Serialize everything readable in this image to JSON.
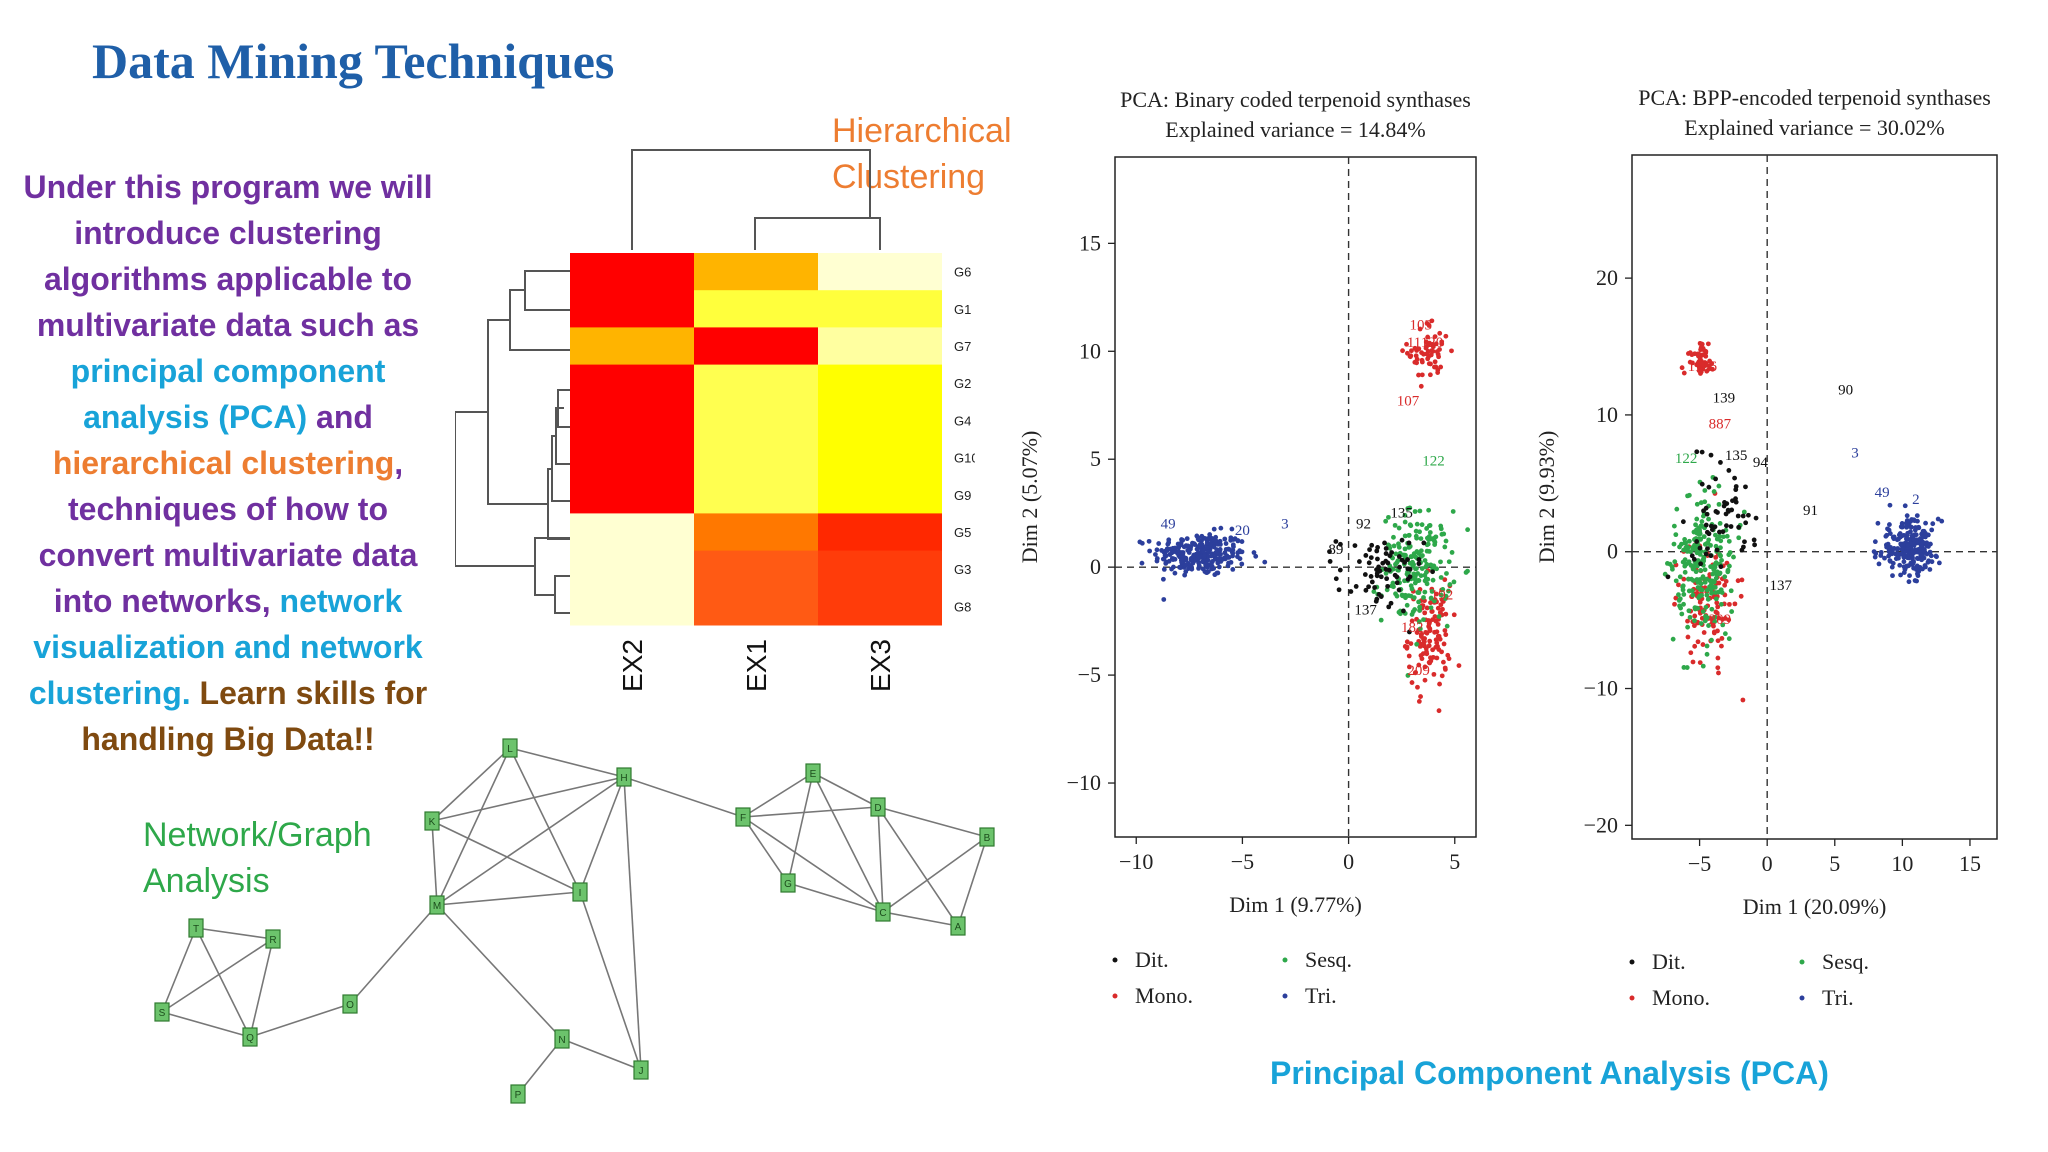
{
  "page": {
    "title": "Data Mining Techniques",
    "intro": {
      "p1": "Under this program we will introduce clustering algorithms applicable to multivariate data such as",
      "p2": "principal component analysis (PCA)",
      "p3": "and",
      "p4": "hierarchical clustering",
      "p5": ", techniques of how to convert multivariate data into networks,",
      "p6": "network visualization and network clustering.",
      "p7": "Learn skills for handling Big Data!!"
    },
    "hc_label_1": "Hierarchical",
    "hc_label_2": "Clustering",
    "net_label_1": "Network/Graph",
    "net_label_2": "Analysis",
    "pca_caption": "Principal Component Analysis (PCA)"
  },
  "heatmap": {
    "rows": [
      "G6",
      "G1",
      "G7",
      "G2",
      "G4",
      "G10",
      "G9",
      "G5",
      "G3",
      "G8"
    ],
    "cols": [
      "EX2",
      "EX1",
      "EX3"
    ],
    "colors": [
      [
        "#ff0000",
        "#ffb400",
        "#ffffd2"
      ],
      [
        "#ff0000",
        "#ffff3c",
        "#ffff3c"
      ],
      [
        "#ffb400",
        "#ff0000",
        "#ffffa0"
      ],
      [
        "#ff0000",
        "#ffff50",
        "#ffff00"
      ],
      [
        "#ff0000",
        "#ffff50",
        "#ffff00"
      ],
      [
        "#ff0000",
        "#ffff50",
        "#ffff00"
      ],
      [
        "#ff0000",
        "#ffff50",
        "#ffff00"
      ],
      [
        "#ffffd2",
        "#ff7800",
        "#ff2800"
      ],
      [
        "#ffffd2",
        "#ff5a14",
        "#ff3c0a"
      ],
      [
        "#ffffd2",
        "#ff5a14",
        "#ff3c0a"
      ]
    ]
  },
  "network": {
    "nodes": [
      {
        "id": "L"
      },
      {
        "id": "H"
      },
      {
        "id": "K"
      },
      {
        "id": "I"
      },
      {
        "id": "M"
      },
      {
        "id": "T"
      },
      {
        "id": "R"
      },
      {
        "id": "S"
      },
      {
        "id": "Q"
      },
      {
        "id": "O"
      },
      {
        "id": "N"
      },
      {
        "id": "P"
      },
      {
        "id": "J"
      },
      {
        "id": "F"
      },
      {
        "id": "E"
      },
      {
        "id": "D"
      },
      {
        "id": "B"
      },
      {
        "id": "G"
      },
      {
        "id": "C"
      },
      {
        "id": "A"
      }
    ],
    "edges": [
      [
        "L",
        "K"
      ],
      [
        "L",
        "M"
      ],
      [
        "L",
        "H"
      ],
      [
        "L",
        "I"
      ],
      [
        "K",
        "H"
      ],
      [
        "K",
        "I"
      ],
      [
        "K",
        "M"
      ],
      [
        "M",
        "H"
      ],
      [
        "M",
        "I"
      ],
      [
        "H",
        "I"
      ],
      [
        "H",
        "J"
      ],
      [
        "H",
        "F"
      ],
      [
        "M",
        "O"
      ],
      [
        "M",
        "N"
      ],
      [
        "I",
        "J"
      ],
      [
        "T",
        "R"
      ],
      [
        "T",
        "S"
      ],
      [
        "T",
        "Q"
      ],
      [
        "R",
        "S"
      ],
      [
        "R",
        "Q"
      ],
      [
        "S",
        "Q"
      ],
      [
        "Q",
        "O"
      ],
      [
        "N",
        "P"
      ],
      [
        "N",
        "J"
      ],
      [
        "F",
        "E"
      ],
      [
        "F",
        "D"
      ],
      [
        "F",
        "G"
      ],
      [
        "F",
        "C"
      ],
      [
        "E",
        "D"
      ],
      [
        "E",
        "G"
      ],
      [
        "E",
        "C"
      ],
      [
        "D",
        "B"
      ],
      [
        "D",
        "C"
      ],
      [
        "D",
        "A"
      ],
      [
        "B",
        "C"
      ],
      [
        "B",
        "A"
      ],
      [
        "G",
        "C"
      ],
      [
        "C",
        "A"
      ]
    ]
  },
  "chart_data": [
    {
      "type": "scatter",
      "title": "PCA: Binary coded terpenoid synthases",
      "subtitle": "Explained variance = 14.84%",
      "xlabel": "Dim 1 (9.77%)",
      "ylabel": "Dim 2 (5.07%)",
      "xlim": [
        -11,
        6
      ],
      "ylim": [
        -12.5,
        19
      ],
      "xticks": [
        -10,
        -5,
        0,
        5
      ],
      "yticks": [
        -10,
        -5,
        0,
        5,
        10,
        15
      ],
      "xtick_labels": [
        "−10",
        "−5",
        "0",
        "5"
      ],
      "ytick_labels": [
        "−10",
        "−5",
        "0",
        "5",
        "10",
        "15"
      ],
      "legend": [
        "Dit.",
        "Sesq.",
        "Mono.",
        "Tri."
      ],
      "series": [
        {
          "name": "Tri.",
          "color": "#2c3f9c",
          "cx": -7,
          "cy": 0.6,
          "sx": 1.1,
          "sy": 0.5,
          "n": 260
        },
        {
          "name": "Mono.",
          "color": "#d92b2b",
          "cx": 3.8,
          "cy": 10,
          "sx": 0.5,
          "sy": 0.7,
          "n": 60
        },
        {
          "name": "Mono.",
          "color": "#d92b2b",
          "cx": 3.8,
          "cy": -3.2,
          "sx": 0.5,
          "sy": 1.2,
          "n": 120
        },
        {
          "name": "Sesq.",
          "color": "#2ea84a",
          "cx": 3.2,
          "cy": 0,
          "sx": 0.8,
          "sy": 1.3,
          "n": 200
        },
        {
          "name": "Dit.",
          "color": "#111111",
          "cx": 1.5,
          "cy": -0.3,
          "sx": 1.0,
          "sy": 0.9,
          "n": 70
        }
      ],
      "annotations": [
        {
          "x": 3.4,
          "y": 11,
          "text": "103",
          "color": "#d92b2b"
        },
        {
          "x": 3.6,
          "y": 10.2,
          "text": "11120",
          "color": "#d92b2b"
        },
        {
          "x": 2.8,
          "y": 7.5,
          "text": "107",
          "color": "#d92b2b"
        },
        {
          "x": 4,
          "y": 4.7,
          "text": "122",
          "color": "#2ea84a"
        },
        {
          "x": -8.5,
          "y": 1.8,
          "text": "49",
          "color": "#2c3f9c"
        },
        {
          "x": -5,
          "y": 1.5,
          "text": "20",
          "color": "#2c3f9c"
        },
        {
          "x": -3,
          "y": 1.8,
          "text": "3",
          "color": "#2c3f9c"
        },
        {
          "x": 2.5,
          "y": 2.3,
          "text": "135",
          "color": "#111111"
        },
        {
          "x": -0.6,
          "y": 0.6,
          "text": "89",
          "color": "#111111"
        },
        {
          "x": 0.7,
          "y": 1.8,
          "text": "92",
          "color": "#111111"
        },
        {
          "x": 0.8,
          "y": -2.2,
          "text": "137",
          "color": "#111111"
        },
        {
          "x": 4.4,
          "y": -1.5,
          "text": "192",
          "color": "#d92b2b"
        },
        {
          "x": 3,
          "y": -3,
          "text": "182",
          "color": "#d92b2b"
        },
        {
          "x": 3.3,
          "y": -5,
          "text": "209",
          "color": "#d92b2b"
        }
      ]
    },
    {
      "type": "scatter",
      "title": "PCA: BPP-encoded terpenoid synthases",
      "subtitle": "Explained variance = 30.02%",
      "xlabel": "Dim 1 (20.09%)",
      "ylabel": "Dim 2 (9.93%)",
      "xlim": [
        -10,
        17
      ],
      "ylim": [
        -21,
        29
      ],
      "xticks": [
        -5,
        0,
        5,
        10,
        15
      ],
      "yticks": [
        -20,
        -10,
        0,
        10,
        20
      ],
      "xtick_labels": [
        "−5",
        "0",
        "5",
        "10",
        "15"
      ],
      "ytick_labels": [
        "−20",
        "−10",
        "0",
        "10",
        "20"
      ],
      "legend": [
        "Dit.",
        "Sesq.",
        "Mono.",
        "Tri."
      ],
      "series": [
        {
          "name": "Tri.",
          "color": "#2c3f9c",
          "cx": 10.5,
          "cy": 0.3,
          "sx": 1.1,
          "sy": 1.0,
          "n": 240
        },
        {
          "name": "Mono.",
          "color": "#d92b2b",
          "cx": -5,
          "cy": 14,
          "sx": 0.5,
          "sy": 0.6,
          "n": 50
        },
        {
          "name": "Mono.",
          "color": "#d92b2b",
          "cx": -4.5,
          "cy": -3.5,
          "sx": 1.0,
          "sy": 2.2,
          "n": 110
        },
        {
          "name": "Sesq.",
          "color": "#2ea84a",
          "cx": -4.6,
          "cy": -1,
          "sx": 1.1,
          "sy": 2.6,
          "n": 240
        },
        {
          "name": "Dit.",
          "color": "#111111",
          "cx": -3.5,
          "cy": 2.5,
          "sx": 1.5,
          "sy": 2.0,
          "n": 60
        }
      ],
      "annotations": [
        {
          "x": -4.8,
          "y": 13.2,
          "text": "1136",
          "color": "#d92b2b"
        },
        {
          "x": -3.2,
          "y": 10.9,
          "text": "139",
          "color": "#111111"
        },
        {
          "x": -3.5,
          "y": 9,
          "text": "887",
          "color": "#d92b2b"
        },
        {
          "x": -6,
          "y": 6.5,
          "text": "122",
          "color": "#2ea84a"
        },
        {
          "x": -2.3,
          "y": 6.7,
          "text": "135",
          "color": "#111111"
        },
        {
          "x": -0.5,
          "y": 6.2,
          "text": "94",
          "color": "#111111"
        },
        {
          "x": 5.8,
          "y": 11.5,
          "text": "90",
          "color": "#111111"
        },
        {
          "x": 6.5,
          "y": 6.9,
          "text": "3",
          "color": "#2c3f9c"
        },
        {
          "x": 8.5,
          "y": 4,
          "text": "49",
          "color": "#2c3f9c"
        },
        {
          "x": 11,
          "y": 3.5,
          "text": "2",
          "color": "#2c3f9c"
        },
        {
          "x": 3.2,
          "y": 2.7,
          "text": "91",
          "color": "#111111"
        },
        {
          "x": 1,
          "y": -2.8,
          "text": "137",
          "color": "#111111"
        },
        {
          "x": -3.5,
          "y": -5.3,
          "text": "209",
          "color": "#d92b2b"
        }
      ]
    }
  ]
}
